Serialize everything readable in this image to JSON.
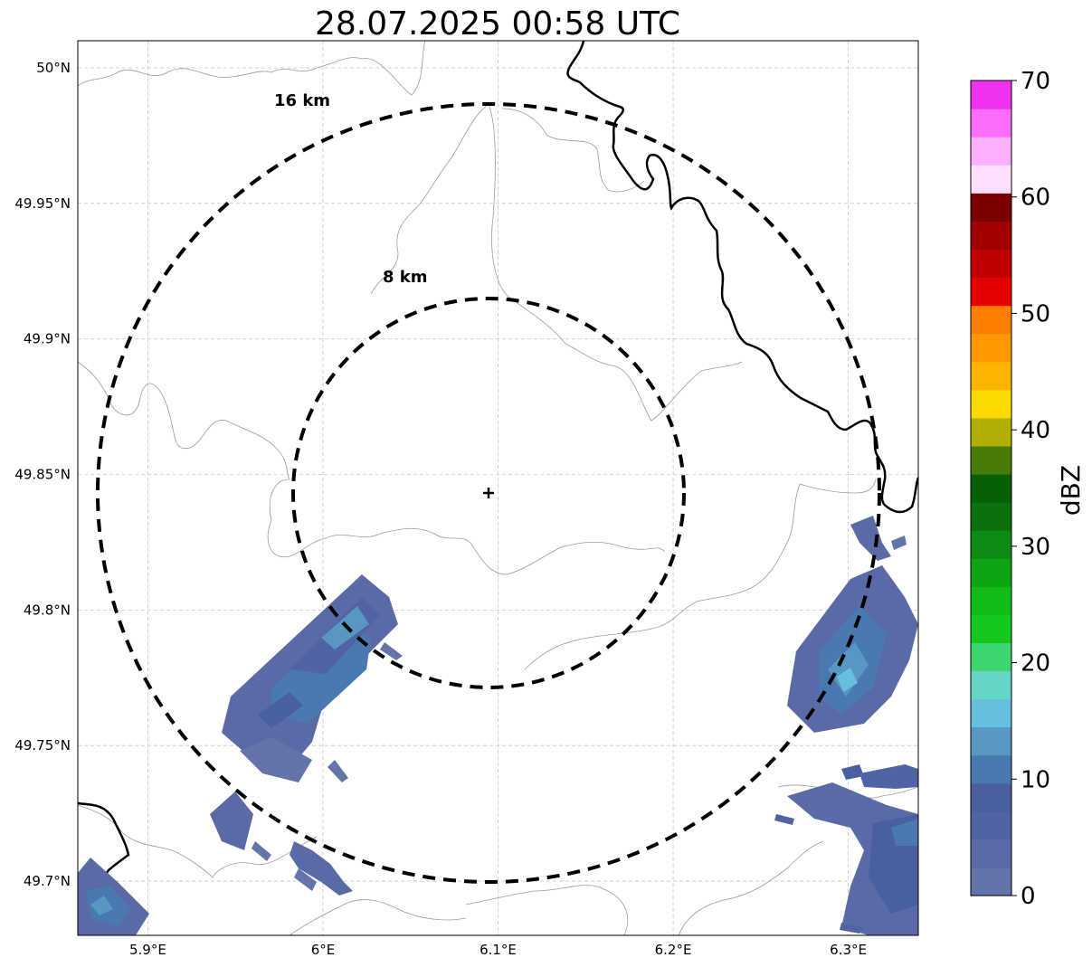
{
  "title": "28.07.2025 00:58 UTC",
  "map": {
    "lon_range": [
      5.86,
      6.34
    ],
    "lat_range": [
      49.68,
      50.01
    ],
    "gridlines": true,
    "radar_center": {
      "lon": 6.095,
      "lat": 49.843
    },
    "x_ticks": [
      {
        "value": 5.9,
        "label": "5.9°E"
      },
      {
        "value": 6.0,
        "label": "6°E"
      },
      {
        "value": 6.1,
        "label": "6.1°E"
      },
      {
        "value": 6.2,
        "label": "6.2°E"
      },
      {
        "value": 6.3,
        "label": "6.3°E"
      }
    ],
    "y_ticks": [
      {
        "value": 49.7,
        "label": "49.7°N"
      },
      {
        "value": 49.75,
        "label": "49.75°N"
      },
      {
        "value": 49.8,
        "label": "49.8°N"
      },
      {
        "value": 49.85,
        "label": "49.85°N"
      },
      {
        "value": 49.9,
        "label": "49.9°N"
      },
      {
        "value": 49.95,
        "label": "49.95°N"
      },
      {
        "value": 50.0,
        "label": "50°N"
      }
    ],
    "range_rings": [
      {
        "radius_km": 8,
        "label": "8 km"
      },
      {
        "radius_km": 16,
        "label": "16 km"
      }
    ]
  },
  "colorbar": {
    "label": "dBZ",
    "min": 0,
    "max": 70,
    "step": 2.5,
    "tick_values": [
      0,
      10,
      20,
      30,
      40,
      50,
      60,
      70
    ],
    "tick_labels": [
      "0",
      "10",
      "20",
      "30",
      "40",
      "50",
      "60",
      "70"
    ],
    "colors": [
      "#6474a8",
      "#5a6aa6",
      "#5063a4",
      "#4a5ea2",
      "#4a78b0",
      "#5897c2",
      "#66bfdc",
      "#64d6c6",
      "#3ed470",
      "#14c81c",
      "#12bc16",
      "#0ea414",
      "#0c8c14",
      "#0a7010",
      "#056008",
      "#4a7a0a",
      "#afaf05",
      "#fcd900",
      "#fcb400",
      "#fe9800",
      "#fe7e00",
      "#e40000",
      "#c00000",
      "#a00000",
      "#7a0000",
      "#fde0fe",
      "#fbb0fd",
      "#fb6efc",
      "#ee33ef"
    ]
  },
  "echoes": [
    {
      "region": "southwest of radar",
      "reflectivity_dbz_range": [
        0,
        15
      ]
    },
    {
      "region": "southeast edge",
      "reflectivity_dbz_range": [
        0,
        15
      ]
    },
    {
      "region": "south-southwest",
      "reflectivity_dbz_range": [
        0,
        10
      ]
    },
    {
      "region": "southwest corner",
      "reflectivity_dbz_range": [
        0,
        15
      ]
    }
  ]
}
